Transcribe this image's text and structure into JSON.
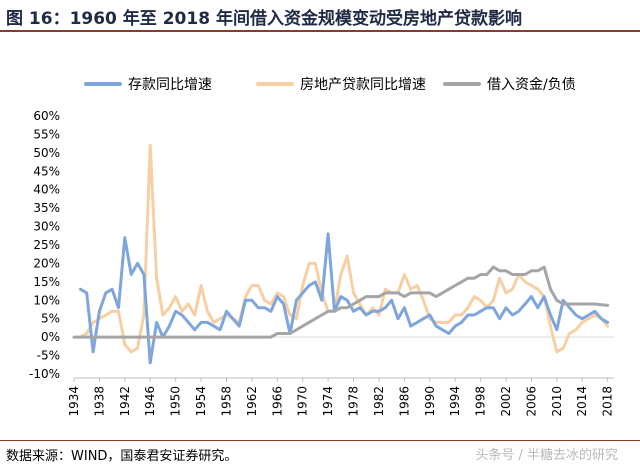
{
  "header": {
    "title": "图 16：1960 年至 2018 年间借入资金规模变动受房地产贷款影响"
  },
  "footer": {
    "source": "数据来源：WIND，国泰君安证券研究。",
    "watermark": "头条号 / 半糖去冰的研究"
  },
  "chart_data": {
    "type": "line",
    "xlim": [
      1934,
      2019
    ],
    "ylim": [
      -10,
      60
    ],
    "x_ticks": [
      "1934",
      "1938",
      "1942",
      "1946",
      "1950",
      "1954",
      "1958",
      "1962",
      "1966",
      "1970",
      "1974",
      "1978",
      "1982",
      "1986",
      "1990",
      "1994",
      "1998",
      "2002",
      "2006",
      "2010",
      "2014",
      "2018"
    ],
    "y_ticks": [
      "-10%",
      "-5%",
      "0%",
      "5%",
      "10%",
      "15%",
      "20%",
      "25%",
      "30%",
      "35%",
      "40%",
      "45%",
      "50%",
      "55%",
      "60%"
    ],
    "legend_position": "top",
    "series": [
      {
        "name": "存款同比增速",
        "color": "#7ea6dc",
        "x": [
          1935,
          1936,
          1937,
          1938,
          1939,
          1940,
          1941,
          1942,
          1943,
          1944,
          1945,
          1946,
          1947,
          1948,
          1949,
          1950,
          1951,
          1952,
          1953,
          1954,
          1955,
          1956,
          1957,
          1958,
          1959,
          1960,
          1961,
          1962,
          1963,
          1964,
          1965,
          1966,
          1967,
          1968,
          1969,
          1970,
          1971,
          1972,
          1973,
          1974,
          1975,
          1976,
          1977,
          1978,
          1979,
          1980,
          1981,
          1982,
          1983,
          1984,
          1985,
          1986,
          1987,
          1988,
          1989,
          1990,
          1991,
          1992,
          1993,
          1994,
          1995,
          1996,
          1997,
          1998,
          1999,
          2000,
          2001,
          2002,
          2003,
          2004,
          2005,
          2006,
          2007,
          2008,
          2009,
          2010,
          2011,
          2012,
          2013,
          2014,
          2015,
          2016,
          2017,
          2018
        ],
        "y": [
          13,
          12,
          -4,
          7,
          12,
          13,
          8,
          27,
          17,
          20,
          17,
          -7,
          4,
          0,
          3,
          7,
          6,
          4,
          2,
          4,
          4,
          3,
          2,
          7,
          5,
          3,
          10,
          10,
          8,
          8,
          7,
          11,
          9,
          1,
          10,
          12,
          14,
          15,
          10,
          28,
          7,
          11,
          10,
          7,
          8,
          6,
          7,
          7,
          8,
          10,
          5,
          8,
          3,
          4,
          5,
          6,
          3,
          2,
          1,
          3,
          4,
          6,
          6,
          7,
          8,
          8,
          5,
          8,
          6,
          7,
          9,
          11,
          8,
          11,
          6,
          2,
          10,
          8,
          6,
          5,
          6,
          7,
          5,
          4
        ]
      },
      {
        "name": "房地产贷款同比增速",
        "color": "#f7cfa3",
        "x": [
          1935,
          1936,
          1937,
          1938,
          1939,
          1940,
          1941,
          1942,
          1943,
          1944,
          1945,
          1946,
          1947,
          1948,
          1949,
          1950,
          1951,
          1952,
          1953,
          1954,
          1955,
          1956,
          1957,
          1958,
          1959,
          1960,
          1961,
          1962,
          1963,
          1964,
          1965,
          1966,
          1967,
          1968,
          1969,
          1970,
          1971,
          1972,
          1973,
          1974,
          1975,
          1976,
          1977,
          1978,
          1979,
          1980,
          1981,
          1982,
          1983,
          1984,
          1985,
          1986,
          1987,
          1988,
          1989,
          1990,
          1991,
          1992,
          1993,
          1994,
          1995,
          1996,
          1997,
          1998,
          1999,
          2000,
          2001,
          2002,
          2003,
          2004,
          2005,
          2006,
          2007,
          2008,
          2009,
          2010,
          2011,
          2012,
          2013,
          2014,
          2015,
          2016,
          2017,
          2018
        ],
        "y": [
          0,
          1,
          4,
          5,
          6,
          7,
          7,
          -2,
          -4,
          -3,
          6,
          52,
          16,
          6,
          8,
          11,
          7,
          9,
          6,
          14,
          7,
          4,
          5,
          6,
          5,
          4,
          11,
          14,
          14,
          10,
          9,
          12,
          11,
          6,
          5,
          14,
          20,
          20,
          12,
          7,
          7,
          17,
          22,
          12,
          9,
          6,
          8,
          6,
          13,
          12,
          12,
          17,
          13,
          14,
          10,
          5,
          4,
          4,
          4,
          6,
          6,
          8,
          11,
          10,
          8,
          10,
          16,
          12,
          13,
          17,
          15,
          14,
          13,
          11,
          3,
          -4,
          -3,
          1,
          2,
          4,
          5,
          6,
          5,
          3
        ]
      },
      {
        "name": "借入资金/负债",
        "color": "#a5a5a5",
        "x": [
          1934,
          1940,
          1950,
          1955,
          1960,
          1965,
          1966,
          1967,
          1968,
          1969,
          1970,
          1971,
          1972,
          1973,
          1974,
          1975,
          1976,
          1977,
          1978,
          1979,
          1980,
          1981,
          1982,
          1983,
          1984,
          1985,
          1986,
          1987,
          1988,
          1989,
          1990,
          1991,
          1992,
          1993,
          1994,
          1995,
          1996,
          1997,
          1998,
          1999,
          2000,
          2001,
          2002,
          2003,
          2004,
          2005,
          2006,
          2007,
          2008,
          2009,
          2010,
          2011,
          2012,
          2013,
          2014,
          2015,
          2016,
          2017,
          2018
        ],
        "y": [
          0,
          0,
          0,
          0,
          0,
          0,
          1,
          1,
          1,
          2,
          3,
          4,
          5,
          6,
          7,
          7,
          8,
          8,
          9,
          10,
          11,
          11,
          11,
          12,
          12,
          12,
          11,
          12,
          12,
          12,
          12,
          11,
          12,
          13,
          14,
          15,
          16,
          16,
          17,
          17,
          19,
          18,
          18,
          17,
          17,
          17,
          18,
          18,
          19,
          13,
          10,
          9,
          9,
          9,
          9,
          9,
          9,
          8.8,
          8.6
        ]
      }
    ]
  }
}
